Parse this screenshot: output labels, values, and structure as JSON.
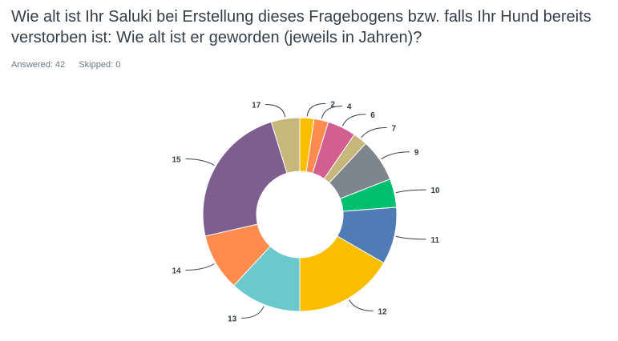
{
  "question": {
    "title": "Wie alt ist Ihr Saluki bei Erstellung dieses Fragebogens bzw. falls Ihr Hund bereits verstorben ist: Wie alt ist er geworden (jeweils in Jahren)?",
    "answered": "Answered: 42",
    "skipped": "Skipped: 0"
  },
  "chart_data": {
    "type": "pie",
    "variant": "donut",
    "title": "",
    "categories": [
      "2",
      "4",
      "6",
      "7",
      "9",
      "10",
      "11",
      "12",
      "13",
      "14",
      "15",
      "17"
    ],
    "values": [
      1,
      1,
      2,
      1,
      3,
      2,
      4,
      7,
      5,
      4,
      10,
      2
    ],
    "colors": [
      "#f9be00",
      "#ff8b4f",
      "#d25f90",
      "#c8b77a",
      "#7d868c",
      "#00bf6f",
      "#507cb6",
      "#f9be00",
      "#6bc8cd",
      "#ff8b4f",
      "#7e5e8f",
      "#c8b77a"
    ],
    "legend": "none"
  }
}
